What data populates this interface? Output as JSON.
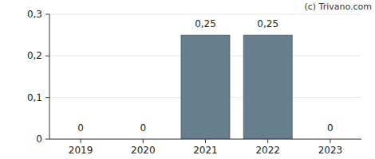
{
  "chart_data": {
    "type": "bar",
    "annotations": [
      "(c) Trivano.com"
    ],
    "categories": [
      "2019",
      "2020",
      "2021",
      "2022",
      "2023"
    ],
    "values": [
      0,
      0,
      0.25,
      0.25,
      0
    ],
    "value_labels": [
      "0",
      "0",
      "0,25",
      "0,25",
      "0"
    ],
    "data_labels": true,
    "color": "#667f8f",
    "ylim": [
      0,
      0.3
    ],
    "yticks": [
      0,
      {
        "value": 0.1,
        "label": "0,1"
      },
      {
        "value": 0.2,
        "label": "0,2"
      },
      {
        "value": 0.3,
        "label": "0,3"
      }
    ],
    "grid": true
  }
}
